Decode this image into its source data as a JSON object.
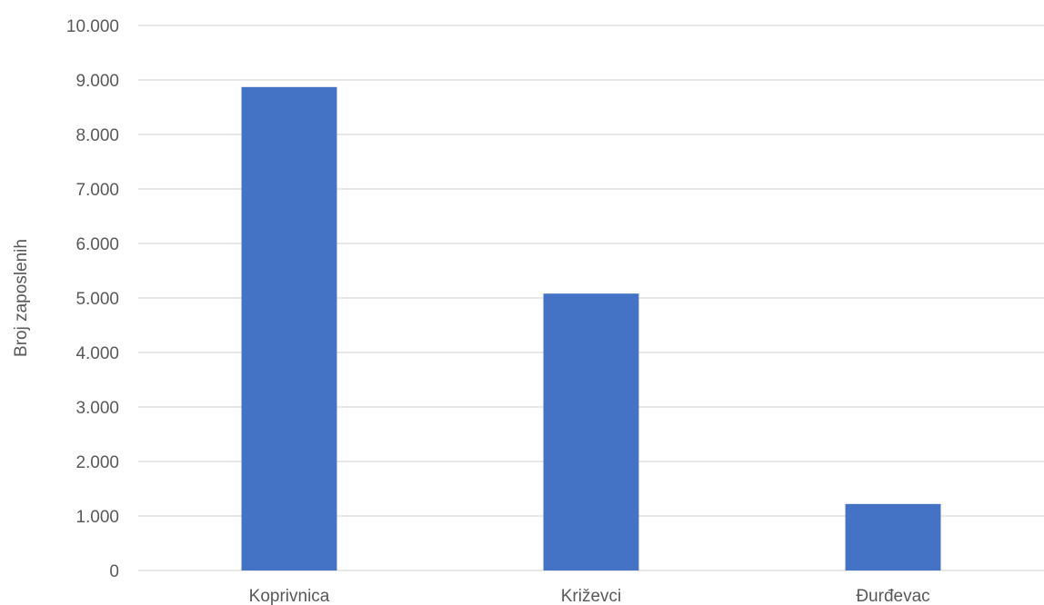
{
  "chart_data": {
    "type": "bar",
    "categories": [
      "Koprivnica",
      "Križevci",
      "Đurđevac"
    ],
    "series": [
      {
        "values": [
          8870,
          5080,
          1220
        ]
      }
    ],
    "ylabel": "Broj zaposlenih",
    "xlabel": "",
    "ylim": [
      0,
      10000
    ],
    "yticks": [
      0,
      1000,
      2000,
      3000,
      4000,
      5000,
      6000,
      7000,
      8000,
      9000,
      10000
    ],
    "ytick_labels": [
      "0",
      "1.000",
      "2.000",
      "3.000",
      "4.000",
      "5.000",
      "6.000",
      "7.000",
      "8.000",
      "9.000",
      "10.000"
    ],
    "bar_color": "#4472c4",
    "grid": true,
    "legend": "none"
  }
}
